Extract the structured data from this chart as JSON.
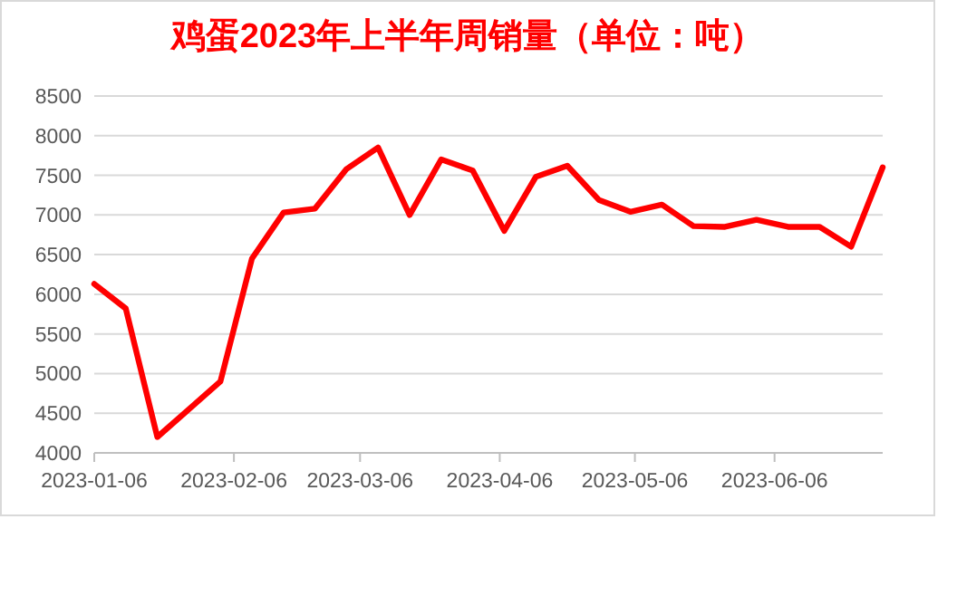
{
  "chart_data": {
    "type": "line",
    "title": "鸡蛋2023年上半年周销量（单位：吨）",
    "x": [
      "2023-01-06",
      "2023-01-13",
      "2023-01-20",
      "2023-01-27",
      "2023-02-03",
      "2023-02-10",
      "2023-02-17",
      "2023-02-24",
      "2023-03-03",
      "2023-03-10",
      "2023-03-17",
      "2023-03-24",
      "2023-03-31",
      "2023-04-07",
      "2023-04-14",
      "2023-04-21",
      "2023-04-28",
      "2023-05-05",
      "2023-05-12",
      "2023-05-19",
      "2023-05-26",
      "2023-06-02",
      "2023-06-09",
      "2023-06-16",
      "2023-06-23",
      "2023-06-30"
    ],
    "values": [
      6130,
      5820,
      4200,
      4550,
      4900,
      6450,
      7030,
      7080,
      7580,
      7850,
      7000,
      7700,
      7560,
      6800,
      7480,
      7620,
      7190,
      7040,
      7130,
      6860,
      6850,
      6940,
      6850,
      6850,
      6600,
      7600
    ],
    "color": "#ff0000",
    "line_style": "solid",
    "xlim": [
      "2023-01-06",
      "2023-06-30"
    ],
    "xticks": [
      "2023-01-06",
      "2023-02-06",
      "2023-03-06",
      "2023-04-06",
      "2023-05-06",
      "2023-06-06"
    ],
    "ylim": [
      4000,
      8500
    ],
    "yticks": [
      4000,
      4500,
      5000,
      5500,
      6000,
      6500,
      7000,
      7500,
      8000,
      8500
    ],
    "grid": "y"
  }
}
